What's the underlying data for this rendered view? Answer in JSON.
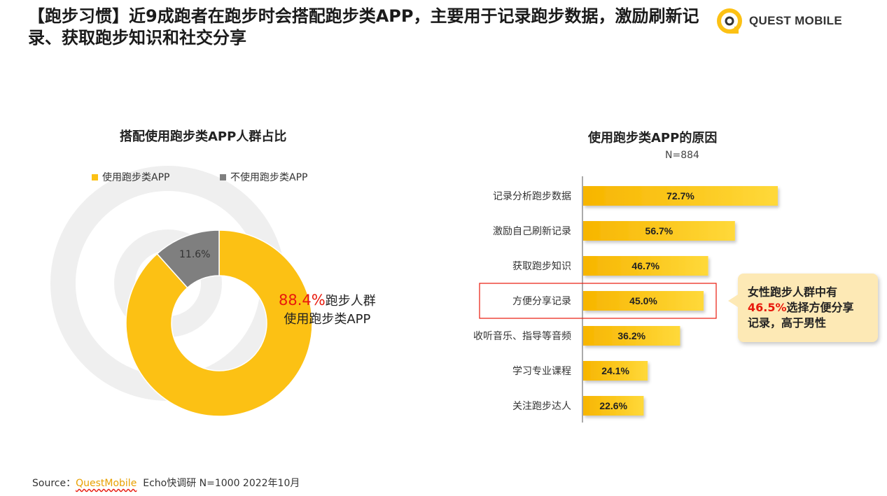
{
  "header": {
    "title": "【跑步习惯】近9成跑者在跑步时会搭配跑步类APP，主要用于记录跑步数据，激励刷新记录、获取跑步知识和社交分享",
    "logo_text": "QUEST MOBILE"
  },
  "left_chart": {
    "title": "搭配使用跑步类APP人群占比",
    "legend": [
      {
        "label": "使用跑步类APP",
        "color": "#fcc114"
      },
      {
        "label": "不使用跑步类APP",
        "color": "#7f7f7f"
      }
    ],
    "slice_small_label": "11.6%",
    "center_pct": "88.4%",
    "center_text1": "跑步人群",
    "center_text2": "使用跑步类APP"
  },
  "right_chart": {
    "title": "使用跑步类APP的原因",
    "n_label": "N=884",
    "callout_line1": "女性跑步人群中有",
    "callout_pct": "46.5%",
    "callout_line2": "选择方便分享",
    "callout_line3": "记录，高于男性"
  },
  "chart_data": [
    {
      "type": "pie",
      "title": "搭配使用跑步类APP人群占比",
      "categories": [
        "使用跑步类APP",
        "不使用跑步类APP"
      ],
      "values": [
        88.4,
        11.6
      ],
      "colors": [
        "#fcc114",
        "#7f7f7f"
      ],
      "legend_position": "top-left"
    },
    {
      "type": "bar",
      "orientation": "horizontal",
      "title": "使用跑步类APP的原因",
      "categories": [
        "记录分析跑步数据",
        "激励自己刷新记录",
        "获取跑步知识",
        "方便分享记录",
        "收听音乐、指导等音频",
        "学习专业课程",
        "关注跑步达人"
      ],
      "values": [
        72.7,
        56.7,
        46.7,
        45.0,
        36.2,
        24.1,
        22.6
      ],
      "value_labels": [
        "72.7%",
        "56.7%",
        "46.7%",
        "45.0%",
        "36.2%",
        "24.1%",
        "22.6%"
      ],
      "highlighted_category": "方便分享记录",
      "bar_color": "#fcc114"
    }
  ],
  "footer": {
    "source_prefix": "Source：",
    "source_brand": "QuestMobile",
    "source_rest": "Echo快调研 N=1000 2022年10月"
  }
}
